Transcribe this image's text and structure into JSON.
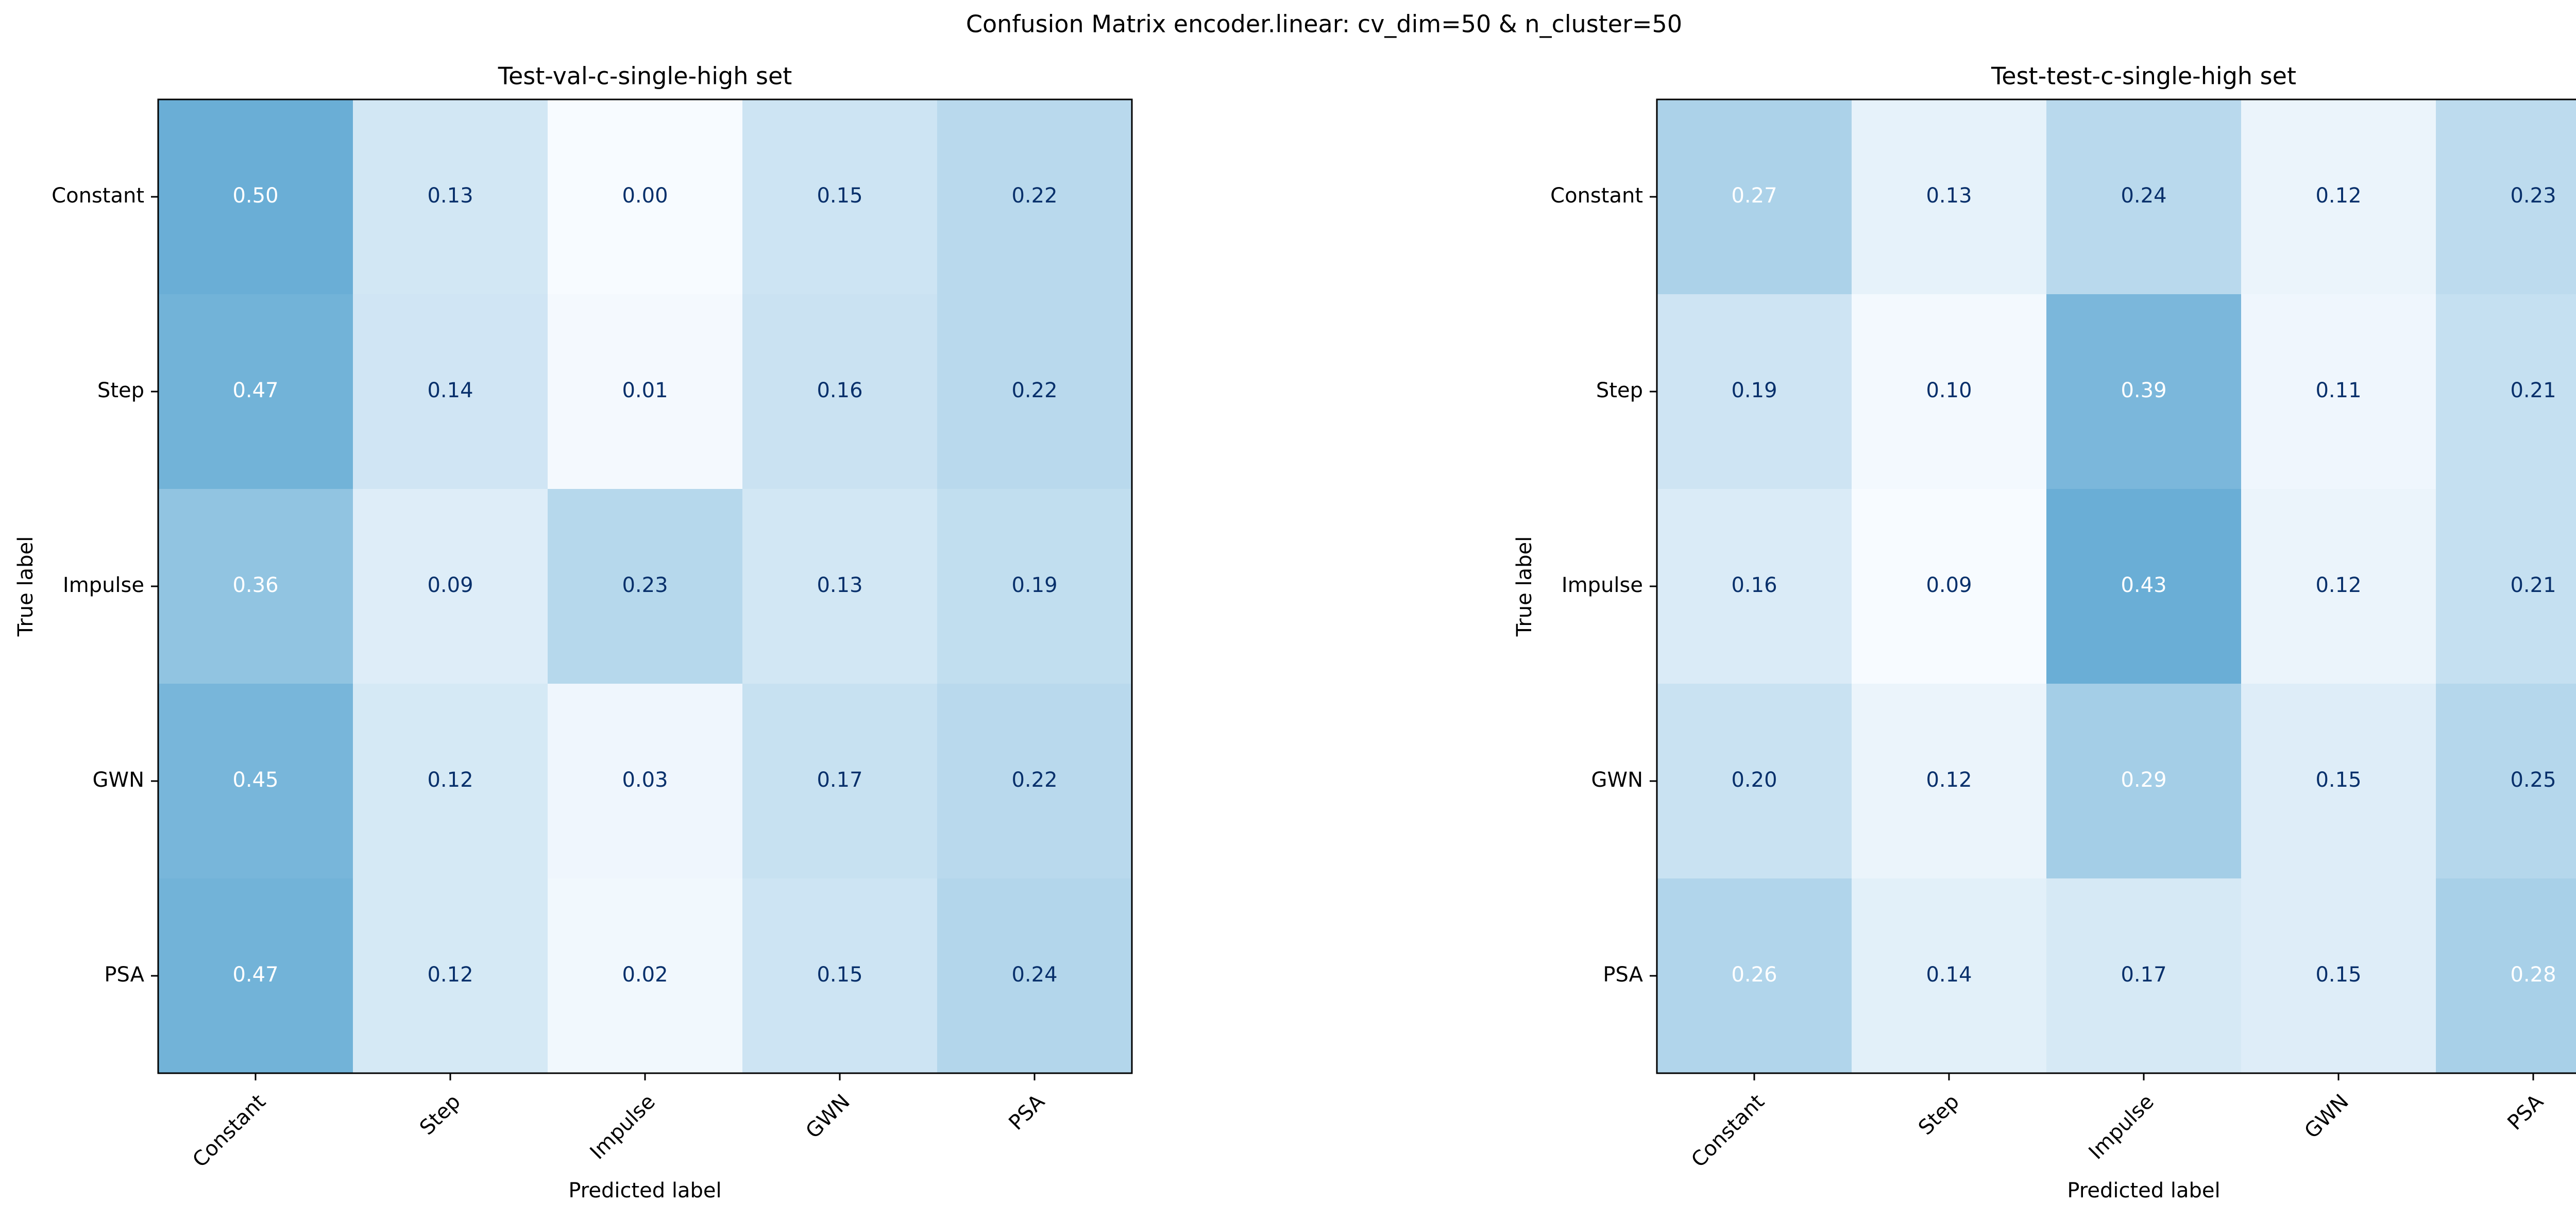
{
  "figure": {
    "title": "Confusion Matrix encoder.linear: cv_dim=50 & n_cluster=50"
  },
  "colors": {
    "cmap_low": "#f7fbff",
    "cmap_high": "#6aaed6",
    "text_dark": "#08306b",
    "text_light": "#ffffff",
    "axis": "#000000"
  },
  "chart_data": [
    {
      "type": "heatmap",
      "title": "Test-val-c-single-high set",
      "xlabel": "Predicted label",
      "ylabel": "True label",
      "x_categories": [
        "Constant",
        "Step",
        "Impulse",
        "GWN",
        "PSA"
      ],
      "y_categories": [
        "Constant",
        "Step",
        "Impulse",
        "GWN",
        "PSA"
      ],
      "values": [
        [
          0.5,
          0.13,
          0.0,
          0.15,
          0.22
        ],
        [
          0.47,
          0.14,
          0.01,
          0.16,
          0.22
        ],
        [
          0.36,
          0.09,
          0.23,
          0.13,
          0.19
        ],
        [
          0.45,
          0.12,
          0.03,
          0.17,
          0.22
        ],
        [
          0.47,
          0.12,
          0.02,
          0.15,
          0.24
        ]
      ],
      "colorbar": false
    },
    {
      "type": "heatmap",
      "title": "Test-test-c-single-high set",
      "xlabel": "Predicted label",
      "ylabel": "True label",
      "x_categories": [
        "Constant",
        "Step",
        "Impulse",
        "GWN",
        "PSA"
      ],
      "y_categories": [
        "Constant",
        "Step",
        "Impulse",
        "GWN",
        "PSA"
      ],
      "values": [
        [
          0.27,
          0.13,
          0.24,
          0.12,
          0.23
        ],
        [
          0.19,
          0.1,
          0.39,
          0.11,
          0.21
        ],
        [
          0.16,
          0.09,
          0.43,
          0.12,
          0.21
        ],
        [
          0.2,
          0.12,
          0.29,
          0.15,
          0.25
        ],
        [
          0.26,
          0.14,
          0.17,
          0.15,
          0.28
        ]
      ],
      "colorbar": false
    }
  ]
}
